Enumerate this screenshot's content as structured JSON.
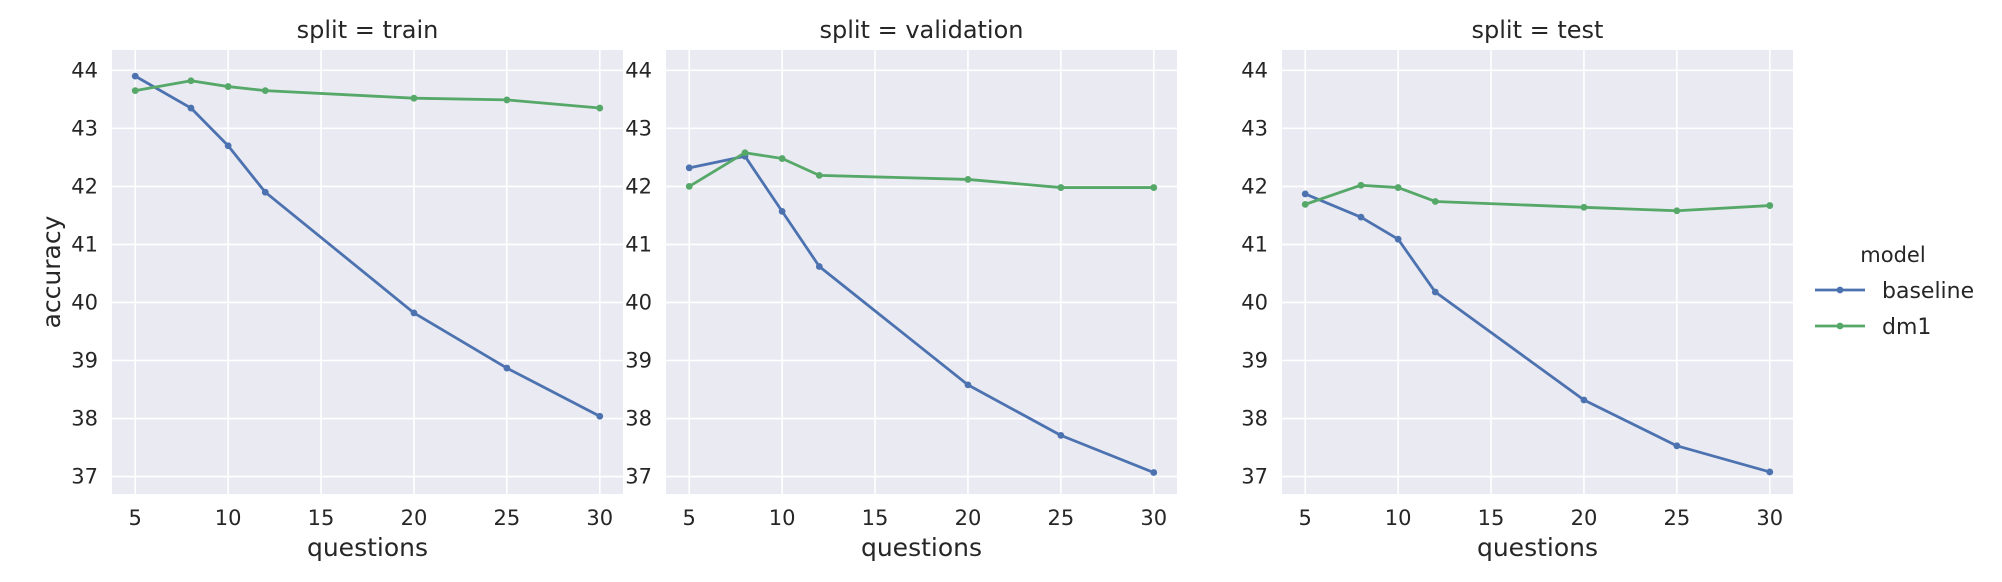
{
  "chart_data": {
    "type": "line",
    "facet_var": "split",
    "xlabel": "questions",
    "ylabel": "accuracy",
    "x": [
      5,
      8,
      10,
      12,
      20,
      25,
      30
    ],
    "xticks": [
      5,
      10,
      15,
      20,
      25,
      30
    ],
    "yticks": [
      37,
      38,
      39,
      40,
      41,
      42,
      43,
      44
    ],
    "xlim": [
      3.75,
      31.25
    ],
    "ylim": [
      36.7,
      44.35
    ],
    "legend": {
      "title": "model",
      "placement": "right",
      "entries": [
        "baseline",
        "dm1"
      ]
    },
    "series_colors": {
      "baseline": "#4c72b0",
      "dm1": "#55a868"
    },
    "panels": [
      {
        "title": "split = train",
        "series": [
          {
            "name": "baseline",
            "values": [
              43.9,
              43.35,
              42.7,
              41.9,
              39.82,
              38.87,
              38.04
            ]
          },
          {
            "name": "dm1",
            "values": [
              43.65,
              43.82,
              43.72,
              43.65,
              43.52,
              43.49,
              43.35
            ]
          }
        ]
      },
      {
        "title": "split = validation",
        "series": [
          {
            "name": "baseline",
            "values": [
              42.32,
              42.52,
              41.57,
              40.62,
              38.58,
              37.71,
              37.07
            ]
          },
          {
            "name": "dm1",
            "values": [
              42.0,
              42.58,
              42.48,
              42.19,
              42.12,
              41.98,
              41.98
            ]
          }
        ]
      },
      {
        "title": "split = test",
        "series": [
          {
            "name": "baseline",
            "values": [
              41.87,
              41.47,
              41.09,
              40.18,
              38.32,
              37.53,
              37.08
            ]
          },
          {
            "name": "dm1",
            "values": [
              41.69,
              42.02,
              41.98,
              41.74,
              41.64,
              41.58,
              41.67
            ]
          }
        ]
      }
    ]
  }
}
